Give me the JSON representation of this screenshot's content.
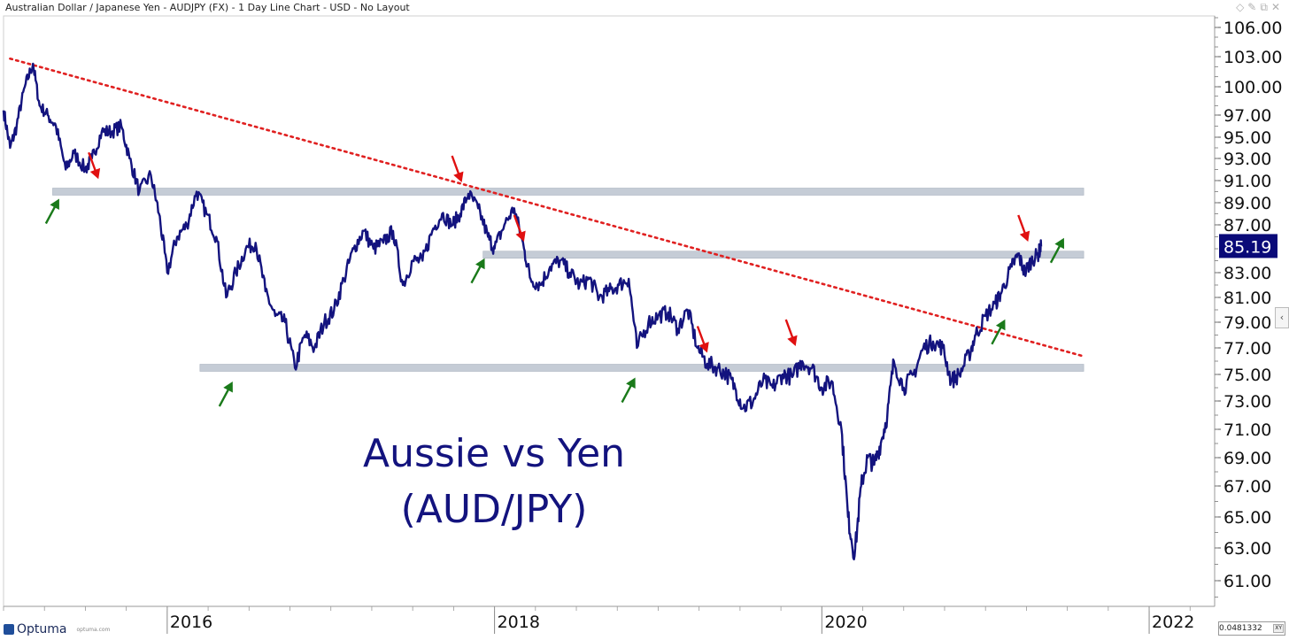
{
  "header": {
    "title": "Australian Dollar / Japanese Yen - AUDJPY (FX) - 1 Day Line Chart - USD - No Layout",
    "icons": [
      "diamond-icon",
      "pin-icon",
      "restore-icon",
      "close-icon"
    ]
  },
  "branding": {
    "logo_text": "Optuma",
    "logo_sub": "optuma.com"
  },
  "footer": {
    "scale_value": "0.0481332",
    "xy_label": "XY"
  },
  "colors": {
    "series": "#13137e",
    "trendline": "#e02020",
    "zone": "#c5ccd6",
    "arrow_up": "#1a7a1a",
    "arrow_down": "#e01010",
    "price_label_bg": "#0a0a78"
  },
  "chart_data": {
    "type": "line",
    "title": "Aussie vs Yen",
    "subtitle": "(AUD/JPY)",
    "xlabel": "",
    "ylabel": "",
    "grid": false,
    "y_axis_ticks": [
      "106.00",
      "103.00",
      "100.00",
      "97.00",
      "95.00",
      "93.00",
      "91.00",
      "89.00",
      "87.00",
      "83.00",
      "81.00",
      "79.00",
      "77.00",
      "75.00",
      "73.00",
      "71.00",
      "69.00",
      "67.00",
      "65.00",
      "63.00",
      "61.00"
    ],
    "x_axis_ticks": [
      "2016",
      "2018",
      "2020",
      "2022"
    ],
    "ylim": [
      59.5,
      107.5
    ],
    "xlim": [
      2015.0,
      2022.4
    ],
    "last_price_label": "85.19",
    "series": [
      {
        "values": [
          [
            2015.0,
            97.5
          ],
          [
            2015.04,
            94.0
          ],
          [
            2015.08,
            96.0
          ],
          [
            2015.13,
            100.0
          ],
          [
            2015.18,
            102.3
          ],
          [
            2015.22,
            98.0
          ],
          [
            2015.27,
            97.0
          ],
          [
            2015.32,
            96.0
          ],
          [
            2015.38,
            92.0
          ],
          [
            2015.43,
            93.5
          ],
          [
            2015.5,
            92.0
          ],
          [
            2015.54,
            93.0
          ],
          [
            2015.6,
            95.5
          ],
          [
            2015.66,
            95.5
          ],
          [
            2015.72,
            96.0
          ],
          [
            2015.77,
            93.0
          ],
          [
            2015.83,
            90.0
          ],
          [
            2015.9,
            91.5
          ],
          [
            2015.95,
            88.0
          ],
          [
            2016.0,
            83.0
          ],
          [
            2016.06,
            86.0
          ],
          [
            2016.12,
            87.0
          ],
          [
            2016.18,
            90.0
          ],
          [
            2016.24,
            88.0
          ],
          [
            2016.3,
            86.0
          ],
          [
            2016.36,
            81.0
          ],
          [
            2016.42,
            83.0
          ],
          [
            2016.48,
            85.0
          ],
          [
            2016.54,
            85.5
          ],
          [
            2016.6,
            81.5
          ],
          [
            2016.66,
            79.5
          ],
          [
            2016.72,
            79.0
          ],
          [
            2016.78,
            75.5
          ],
          [
            2016.84,
            78.0
          ],
          [
            2016.9,
            77.0
          ],
          [
            2016.96,
            79.0
          ],
          [
            2017.02,
            80.0
          ],
          [
            2017.08,
            82.5
          ],
          [
            2017.14,
            85.0
          ],
          [
            2017.2,
            86.5
          ],
          [
            2017.26,
            85.0
          ],
          [
            2017.32,
            85.5
          ],
          [
            2017.38,
            86.5
          ],
          [
            2017.44,
            82.0
          ],
          [
            2017.5,
            84.0
          ],
          [
            2017.56,
            84.0
          ],
          [
            2017.62,
            86.5
          ],
          [
            2017.68,
            88.0
          ],
          [
            2017.74,
            87.0
          ],
          [
            2017.79,
            88.0
          ],
          [
            2017.84,
            89.8
          ],
          [
            2017.9,
            88.5
          ],
          [
            2017.96,
            86.0
          ],
          [
            2018.0,
            85.0
          ],
          [
            2018.06,
            87.0
          ],
          [
            2018.12,
            88.5
          ],
          [
            2018.18,
            85.0
          ],
          [
            2018.22,
            82.5
          ],
          [
            2018.28,
            82.0
          ],
          [
            2018.34,
            83.5
          ],
          [
            2018.4,
            84.0
          ],
          [
            2018.46,
            83.0
          ],
          [
            2018.52,
            82.0
          ],
          [
            2018.58,
            82.5
          ],
          [
            2018.64,
            81.0
          ],
          [
            2018.7,
            81.5
          ],
          [
            2018.76,
            82.0
          ],
          [
            2018.82,
            82.5
          ],
          [
            2018.87,
            77.0
          ],
          [
            2018.94,
            79.0
          ],
          [
            2019.0,
            79.5
          ],
          [
            2019.06,
            79.8
          ],
          [
            2019.12,
            78.5
          ],
          [
            2019.18,
            80.0
          ],
          [
            2019.24,
            77.0
          ],
          [
            2019.3,
            75.8
          ],
          [
            2019.36,
            75.5
          ],
          [
            2019.42,
            75.0
          ],
          [
            2019.47,
            74.0
          ],
          [
            2019.52,
            72.5
          ],
          [
            2019.58,
            73.0
          ],
          [
            2019.64,
            74.5
          ],
          [
            2019.7,
            74.0
          ],
          [
            2019.76,
            75.0
          ],
          [
            2019.82,
            74.8
          ],
          [
            2019.88,
            76.0
          ],
          [
            2019.94,
            75.5
          ],
          [
            2020.0,
            74.0
          ],
          [
            2020.06,
            74.5
          ],
          [
            2020.12,
            71.0
          ],
          [
            2020.16,
            65.0
          ],
          [
            2020.2,
            62.5
          ],
          [
            2020.24,
            67.0
          ],
          [
            2020.28,
            69.0
          ],
          [
            2020.32,
            68.5
          ],
          [
            2020.36,
            70.0
          ],
          [
            2020.4,
            72.0
          ],
          [
            2020.44,
            76.0
          ],
          [
            2020.5,
            74.0
          ],
          [
            2020.56,
            75.0
          ],
          [
            2020.62,
            77.0
          ],
          [
            2020.68,
            77.5
          ],
          [
            2020.74,
            77.0
          ],
          [
            2020.79,
            74.5
          ],
          [
            2020.84,
            75.0
          ],
          [
            2020.9,
            76.5
          ],
          [
            2020.94,
            78.0
          ],
          [
            2021.0,
            79.5
          ],
          [
            2021.06,
            80.5
          ],
          [
            2021.1,
            81.5
          ],
          [
            2021.16,
            83.5
          ],
          [
            2021.2,
            84.5
          ],
          [
            2021.24,
            83.0
          ],
          [
            2021.28,
            84.0
          ],
          [
            2021.32,
            84.5
          ],
          [
            2021.34,
            85.19
          ]
        ]
      }
    ],
    "horizontal_zones": [
      {
        "x": [
          2015.3,
          2021.6
        ],
        "y": 90.0
      },
      {
        "x": [
          2017.93,
          2021.6
        ],
        "y": 84.5
      },
      {
        "x": [
          2016.2,
          2021.6
        ],
        "y": 75.5
      }
    ],
    "trendline": {
      "from": [
        2015.04,
        102.8
      ],
      "to": [
        2021.59,
        76.4
      ]
    },
    "arrows_up": [
      [
        2015.34,
        90.0
      ],
      [
        2016.4,
        75.0
      ],
      [
        2017.94,
        84.8
      ],
      [
        2018.86,
        75.3
      ],
      [
        2021.12,
        79.8
      ],
      [
        2021.48,
        86.5
      ]
    ],
    "arrows_down": [
      [
        2015.58,
        90.5
      ],
      [
        2017.8,
        90.2
      ],
      [
        2018.18,
        85.0
      ],
      [
        2019.3,
        76.1
      ],
      [
        2019.84,
        76.6
      ],
      [
        2021.26,
        85.0
      ]
    ]
  }
}
